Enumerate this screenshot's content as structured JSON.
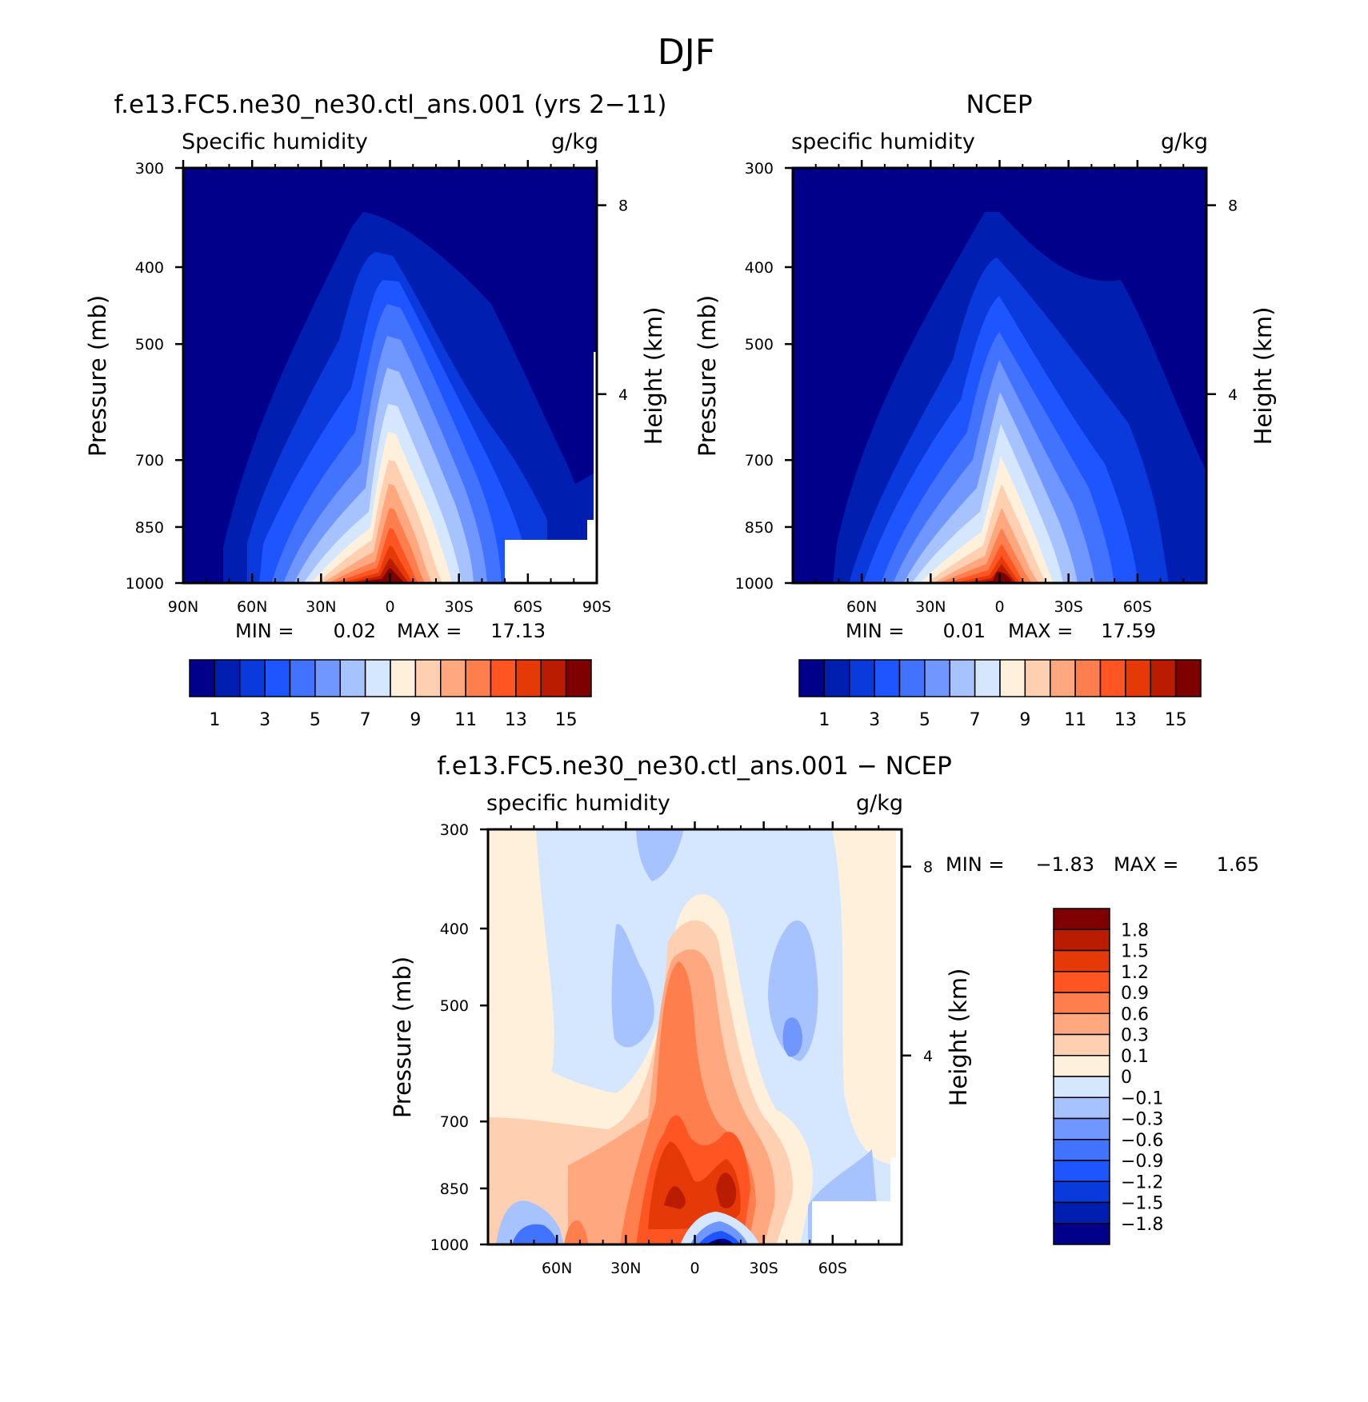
{
  "figure": {
    "title": "DJF"
  },
  "colors": {
    "abs_levels": [
      "#00008b",
      "#001eaf",
      "#0a3adc",
      "#1e55ff",
      "#4273ff",
      "#7097ff",
      "#a6c2ff",
      "#d5e7ff",
      "#fff0dc",
      "#ffcfb1",
      "#ffa880",
      "#ff7e4d",
      "#ff5522",
      "#e53a08",
      "#b91c00",
      "#7f0000"
    ],
    "diff_levels": [
      "#7f0000",
      "#b91c00",
      "#e53a08",
      "#ff5522",
      "#ff7e4d",
      "#ffa880",
      "#ffcfb1",
      "#fff0dc",
      "#d5e7ff",
      "#a6c2ff",
      "#7097ff",
      "#4273ff",
      "#1e55ff",
      "#0a3adc",
      "#001eaf",
      "#00008b"
    ],
    "missing": "#ffffff"
  },
  "panels": {
    "model": {
      "title": "f.e13.FC5.ne30_ne30.ctl_ans.001 (yrs 2−11)",
      "left_label": "Specific humidity",
      "right_label": "g/kg",
      "ylabel": "Pressure (mb)",
      "ylabel_right": "Height (km)",
      "min_label": "MIN =",
      "min_value": "0.02",
      "max_label": "MAX =",
      "max_value": "17.13",
      "xticks": [
        "90N",
        "60N",
        "30N",
        "0",
        "30S",
        "60S",
        "90S"
      ],
      "yticks": [
        "300",
        "400",
        "500",
        "700",
        "850",
        "1000"
      ],
      "height_ticks": [
        "8",
        "4"
      ],
      "colorbar_labels": [
        "1",
        "3",
        "5",
        "7",
        "9",
        "11",
        "13",
        "15"
      ]
    },
    "obs": {
      "title": "NCEP",
      "left_label": "specific humidity",
      "right_label": "g/kg",
      "ylabel": "Pressure (mb)",
      "ylabel_right": "Height (km)",
      "min_label": "MIN =",
      "min_value": "0.01",
      "max_label": "MAX =",
      "max_value": "17.59",
      "xticks": [
        "60N",
        "30N",
        "0",
        "30S",
        "60S"
      ],
      "yticks": [
        "300",
        "400",
        "500",
        "700",
        "850",
        "1000"
      ],
      "height_ticks": [
        "8",
        "4"
      ],
      "colorbar_labels": [
        "1",
        "3",
        "5",
        "7",
        "9",
        "11",
        "13",
        "15"
      ]
    },
    "diff": {
      "title": "f.e13.FC5.ne30_ne30.ctl_ans.001 − NCEP",
      "left_label": "specific humidity",
      "right_label": "g/kg",
      "ylabel": "Pressure (mb)",
      "ylabel_right": "Height (km)",
      "min_label": "MIN =",
      "min_value": "−1.83",
      "max_label": "MAX =",
      "max_value": "1.65",
      "xticks": [
        "60N",
        "30N",
        "0",
        "30S",
        "60S"
      ],
      "yticks": [
        "300",
        "400",
        "500",
        "700",
        "850",
        "1000"
      ],
      "height_ticks": [
        "8",
        "4"
      ],
      "colorbar_labels": [
        "1.8",
        "1.5",
        "1.2",
        "0.9",
        "0.6",
        "0.3",
        "0.1",
        "0",
        "−0.1",
        "−0.3",
        "−0.6",
        "−0.9",
        "−1.2",
        "−1.5",
        "−1.8"
      ]
    }
  },
  "chart_data": [
    {
      "type": "heatmap",
      "title": "f.e13.FC5.ne30_ne30.ctl_ans.001 (yrs 2−11)",
      "variable": "Specific humidity",
      "units": "g/kg",
      "ylabel": "Pressure (mb)",
      "xlim": [
        90,
        -90
      ],
      "ylim": [
        1000,
        300
      ],
      "y_scale": "log",
      "levels": [
        1,
        2,
        3,
        4,
        5,
        6,
        7,
        8,
        9,
        10,
        11,
        12,
        13,
        14,
        15
      ],
      "min": 0.02,
      "max": 17.13,
      "approx_profile": {
        "latitudes": [
          90,
          75,
          60,
          45,
          30,
          15,
          0,
          -15,
          -30,
          -45,
          -60,
          -75,
          -90
        ],
        "surface_1000mb": [
          1.2,
          1.5,
          2.5,
          4.5,
          8.5,
          13.5,
          17.0,
          15.5,
          11.5,
          6.5,
          null,
          null,
          null
        ],
        "at_700mb": [
          0.5,
          0.8,
          1.3,
          2.0,
          3.5,
          5.5,
          7.0,
          6.5,
          5.0,
          3.0,
          1.8,
          1.2,
          0.6
        ],
        "at_500mb": [
          0.2,
          0.3,
          0.5,
          0.8,
          1.5,
          2.5,
          3.2,
          3.0,
          2.4,
          1.4,
          0.8,
          0.4,
          0.2
        ]
      }
    },
    {
      "type": "heatmap",
      "title": "NCEP",
      "variable": "specific humidity",
      "units": "g/kg",
      "ylabel": "Pressure (mb)",
      "xlim": [
        90,
        -90
      ],
      "ylim": [
        1000,
        300
      ],
      "y_scale": "log",
      "levels": [
        1,
        2,
        3,
        4,
        5,
        6,
        7,
        8,
        9,
        10,
        11,
        12,
        13,
        14,
        15
      ],
      "min": 0.01,
      "max": 17.59,
      "approx_profile": {
        "latitudes": [
          90,
          75,
          60,
          45,
          30,
          15,
          0,
          -15,
          -30,
          -45,
          -60,
          -75,
          -90
        ],
        "surface_1000mb": [
          0.8,
          1.2,
          2.2,
          4.2,
          8.0,
          13.0,
          17.0,
          16.5,
          12.0,
          7.0,
          3.5,
          1.8,
          0.6
        ],
        "at_700mb": [
          0.5,
          0.8,
          1.3,
          2.0,
          3.5,
          5.5,
          7.0,
          6.5,
          5.0,
          3.0,
          1.8,
          1.2,
          0.6
        ],
        "at_500mb": [
          0.2,
          0.3,
          0.5,
          0.8,
          1.5,
          2.5,
          3.2,
          3.0,
          2.4,
          1.4,
          0.8,
          0.4,
          0.2
        ]
      }
    },
    {
      "type": "heatmap",
      "title": "f.e13.FC5.ne30_ne30.ctl_ans.001 − NCEP",
      "variable": "specific humidity",
      "units": "g/kg",
      "ylabel": "Pressure (mb)",
      "xlim": [
        90,
        -90
      ],
      "ylim": [
        1000,
        300
      ],
      "y_scale": "log",
      "levels": [
        -1.8,
        -1.5,
        -1.2,
        -0.9,
        -0.6,
        -0.3,
        -0.1,
        0,
        0.1,
        0.3,
        0.6,
        0.9,
        1.2,
        1.5,
        1.8
      ],
      "min": -1.83,
      "max": 1.65,
      "features": [
        {
          "lat_range": [
            -5,
            25
          ],
          "p_range": [
            700,
            1000
          ],
          "value": 1.2
        },
        {
          "lat_range": [
            -8,
            12
          ],
          "p_range": [
            400,
            700
          ],
          "value": 0.6
        },
        {
          "lat_range": [
            -8,
            -18
          ],
          "p_range": [
            950,
            1000
          ],
          "value": -1.5
        },
        {
          "lat_range": [
            60,
            70
          ],
          "p_range": [
            950,
            1000
          ],
          "value": -0.9
        }
      ]
    }
  ]
}
